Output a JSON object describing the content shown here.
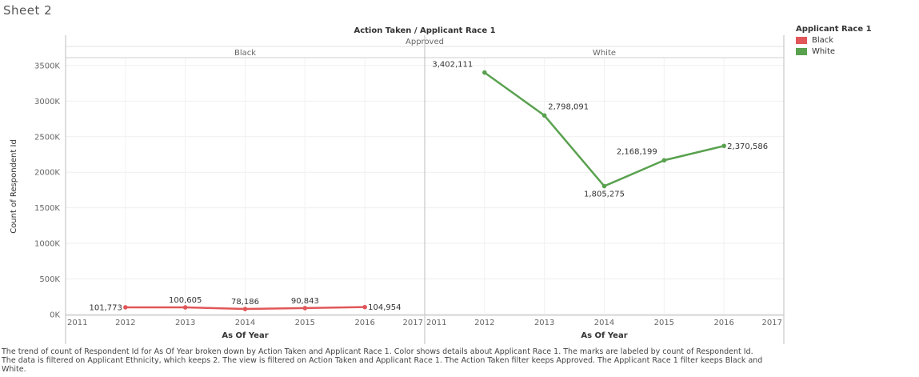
{
  "sheet_title": "Sheet 2",
  "caption": "The trend of count of Respondent Id for As Of Year broken down by Action Taken and Applicant Race 1.  Color shows details about Applicant Race 1.  The marks are labeled by count of Respondent Id. The data is filtered on Applicant Ethnicity, which keeps 2. The view is filtered on Action Taken and Applicant Race 1. The Action Taken filter keeps Approved. The Applicant Race 1 filter keeps Black and White.",
  "colors": {
    "Black": "#e15759",
    "White": "#59a14f"
  },
  "chart_data": {
    "type": "line",
    "title": "Action Taken / Applicant Race 1",
    "column_header": "Approved",
    "ylabel": "Count of Respondent Id",
    "xlabel": "As Of Year",
    "ylim": [
      0,
      3600000
    ],
    "yticks": [
      0,
      500000,
      1000000,
      1500000,
      2000000,
      2500000,
      3000000,
      3500000
    ],
    "ytick_labels": [
      "0K",
      "500K",
      "1000K",
      "1500K",
      "2000K",
      "2500K",
      "3000K",
      "3500K"
    ],
    "xlim": [
      2011,
      2017
    ],
    "xticks": [
      2011,
      2012,
      2013,
      2014,
      2015,
      2016,
      2017
    ],
    "grid": true,
    "legend": {
      "title": "Applicant Race 1",
      "position": "top-right",
      "entries": [
        "Black",
        "White"
      ]
    },
    "panels": [
      {
        "name": "Black",
        "series": [
          {
            "name": "Black",
            "x": [
              2012,
              2013,
              2014,
              2015,
              2016
            ],
            "values": [
              101773,
              100605,
              78186,
              90843,
              104954
            ],
            "labels": [
              "101,773",
              "100,605",
              "78,186",
              "90,843",
              "104,954"
            ]
          }
        ]
      },
      {
        "name": "White",
        "series": [
          {
            "name": "White",
            "x": [
              2012,
              2013,
              2014,
              2015,
              2016
            ],
            "values": [
              3402111,
              2798091,
              1805275,
              2168199,
              2370586
            ],
            "labels": [
              "3,402,111",
              "2,798,091",
              "1,805,275",
              "2,168,199",
              "2,370,586"
            ]
          }
        ]
      }
    ]
  }
}
